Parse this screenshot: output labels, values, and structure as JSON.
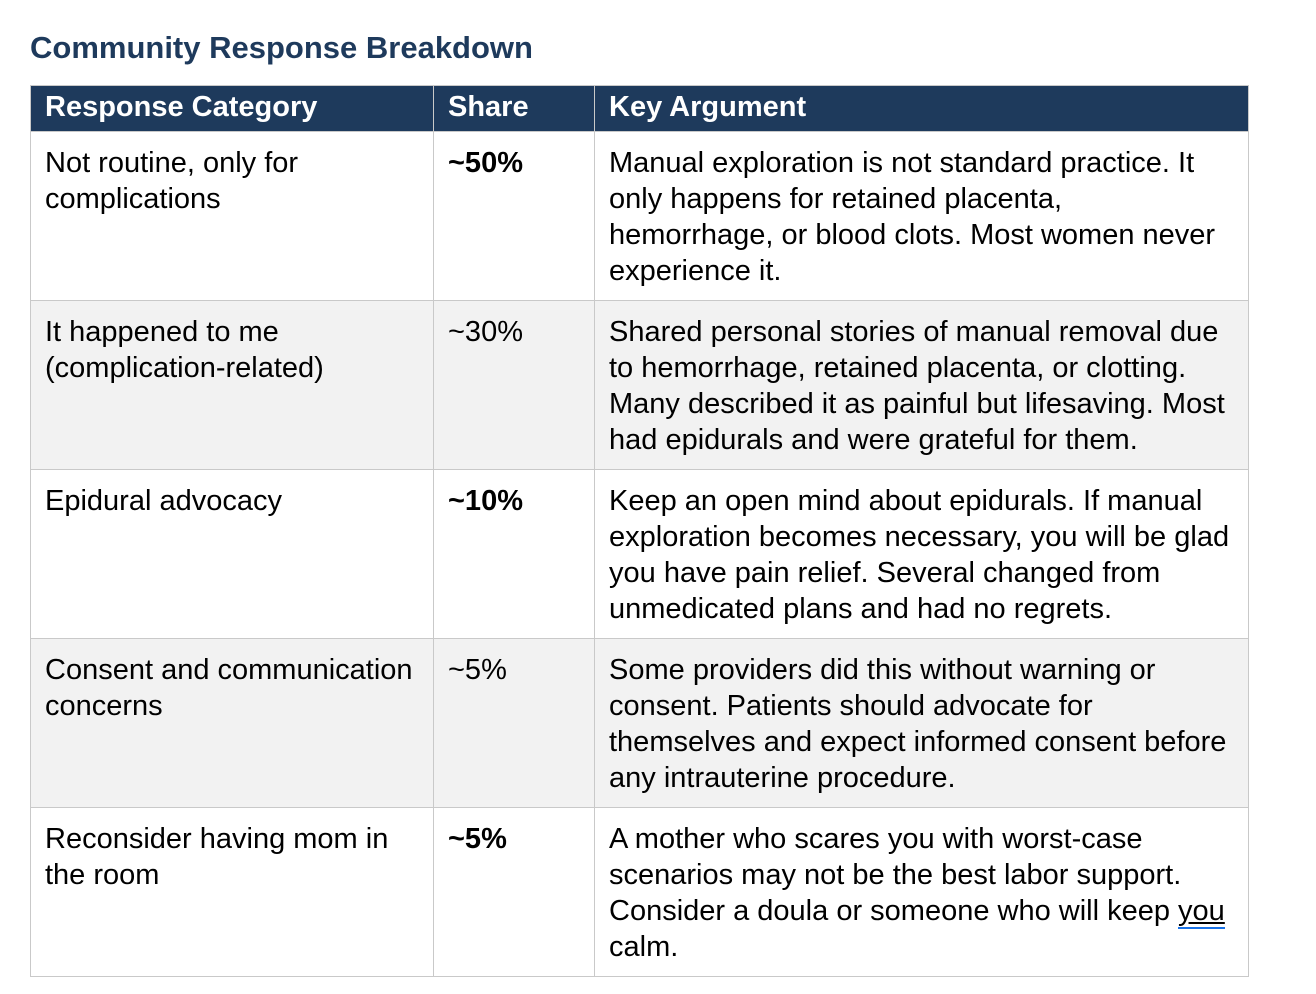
{
  "title": "Community Response Breakdown",
  "colors": {
    "title_text": "#1e3a5c",
    "header_bg": "#1e3a5c",
    "header_text": "#ffffff",
    "alt_row_bg": "#f2f2f2",
    "border": "#c9c9c9",
    "grammar_underline_blue": "#1a73e8"
  },
  "table": {
    "columns": [
      {
        "label": "Response Category"
      },
      {
        "label": "Share"
      },
      {
        "label": "Key Argument"
      }
    ],
    "rows": [
      {
        "category": "Not routine, only for complications",
        "share": "~50%",
        "share_bold": true,
        "argument_segments": [
          {
            "text": "Manual exploration is not standard practice. It only happens for retained placenta, hemorrhage, or blood clots. Most women never experience it.",
            "grammar_mark": false
          }
        ]
      },
      {
        "category": "It happened to me (complication-related)",
        "share": "~30%",
        "share_bold": false,
        "argument_segments": [
          {
            "text": "Shared personal stories of manual removal due to hemorrhage, retained placenta, or clotting. Many described it as painful but lifesaving. Most had epidurals and were grateful for them.",
            "grammar_mark": false
          }
        ]
      },
      {
        "category": "Epidural advocacy",
        "share": "~10%",
        "share_bold": true,
        "argument_segments": [
          {
            "text": "Keep an open mind about epidurals. If manual exploration becomes necessary, you will be glad you have pain relief. Several changed from unmedicated plans and had no regrets.",
            "grammar_mark": false
          }
        ]
      },
      {
        "category": "Consent and communication concerns",
        "share": "~5%",
        "share_bold": false,
        "argument_segments": [
          {
            "text": "Some providers did this without warning or consent. Patients should advocate for themselves and expect informed consent before any intrauterine procedure.",
            "grammar_mark": false
          }
        ]
      },
      {
        "category": "Reconsider having mom in the room",
        "share": "~5%",
        "share_bold": true,
        "argument_segments": [
          {
            "text": "A mother who scares you with worst-case scenarios may not be the best labor support. Consider a doula or someone who will keep ",
            "grammar_mark": false
          },
          {
            "text": "you",
            "grammar_mark": true
          },
          {
            "text": " calm.",
            "grammar_mark": false
          }
        ]
      }
    ]
  }
}
